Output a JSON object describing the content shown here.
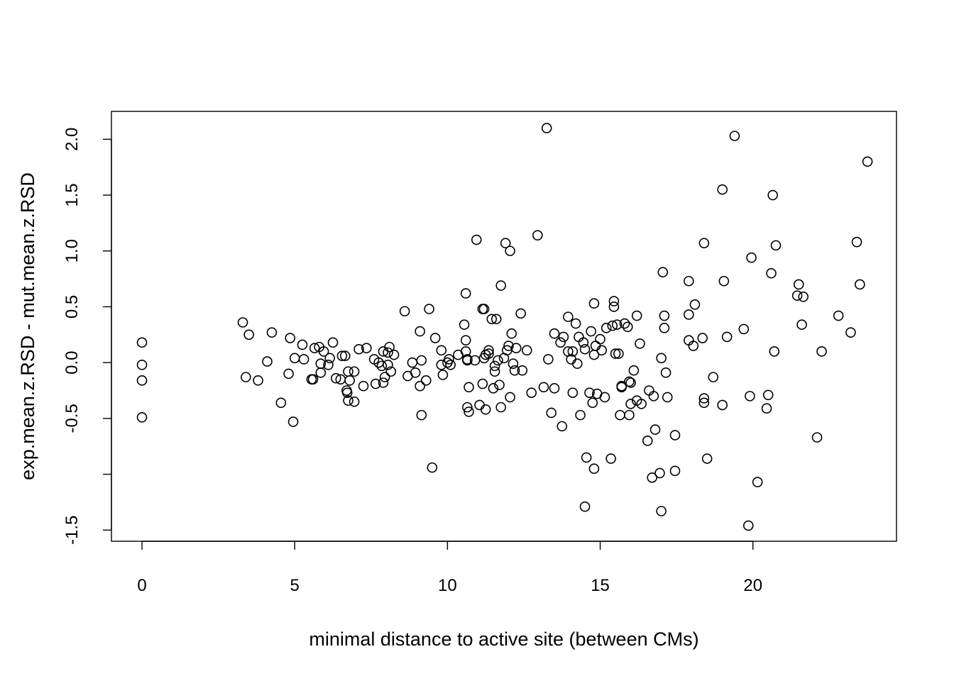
{
  "chart_data": {
    "type": "scatter",
    "xlabel": "minimal distance to active site (between CMs)",
    "ylabel": "exp.mean.z.RSD - mut.mean.z.RSD",
    "xlim": [
      -1.0,
      24.7
    ],
    "ylim": [
      -1.6,
      2.25
    ],
    "xticks": [
      0,
      5,
      10,
      15,
      20
    ],
    "yticks": [
      -1.5,
      -1.0,
      -0.5,
      0.0,
      0.5,
      1.0,
      1.5,
      2.0
    ],
    "ytick_labels": [
      "-1.5",
      "",
      "-0.5",
      "0.0",
      "0.5",
      "1.0",
      "1.5",
      "2.0"
    ],
    "grid": false,
    "points": [
      [
        0,
        0.18
      ],
      [
        0,
        -0.02
      ],
      [
        0,
        -0.16
      ],
      [
        0,
        -0.49
      ],
      [
        3.3,
        0.36
      ],
      [
        3.4,
        -0.13
      ],
      [
        3.5,
        0.25
      ],
      [
        3.8,
        -0.16
      ],
      [
        4.1,
        0.01
      ],
      [
        4.25,
        0.27
      ],
      [
        4.55,
        -0.36
      ],
      [
        4.8,
        -0.1
      ],
      [
        4.85,
        0.22
      ],
      [
        4.95,
        -0.53
      ],
      [
        5.0,
        0.04
      ],
      [
        5.3,
        0.03
      ],
      [
        5.25,
        0.16
      ],
      [
        5.55,
        -0.15
      ],
      [
        5.6,
        -0.15
      ],
      [
        5.65,
        0.13
      ],
      [
        5.8,
        0.14
      ],
      [
        5.85,
        -0.01
      ],
      [
        5.85,
        -0.09
      ],
      [
        5.95,
        0.1
      ],
      [
        6.1,
        -0.02
      ],
      [
        6.15,
        0.04
      ],
      [
        6.25,
        0.18
      ],
      [
        6.35,
        -0.14
      ],
      [
        6.5,
        -0.15
      ],
      [
        6.55,
        0.06
      ],
      [
        6.65,
        0.06
      ],
      [
        6.7,
        -0.25
      ],
      [
        6.72,
        -0.27
      ],
      [
        6.75,
        -0.34
      ],
      [
        6.75,
        -0.08
      ],
      [
        6.8,
        -0.16
      ],
      [
        6.95,
        -0.35
      ],
      [
        6.95,
        -0.08
      ],
      [
        7.1,
        0.12
      ],
      [
        7.25,
        -0.21
      ],
      [
        7.35,
        0.13
      ],
      [
        7.6,
        0.03
      ],
      [
        7.65,
        -0.19
      ],
      [
        7.75,
        0.0
      ],
      [
        7.85,
        -0.03
      ],
      [
        7.9,
        0.1
      ],
      [
        7.9,
        -0.18
      ],
      [
        7.95,
        -0.13
      ],
      [
        8.05,
        -0.02
      ],
      [
        8.05,
        0.09
      ],
      [
        8.1,
        0.14
      ],
      [
        8.15,
        -0.08
      ],
      [
        8.25,
        0.07
      ],
      [
        8.6,
        0.46
      ],
      [
        8.7,
        -0.12
      ],
      [
        8.85,
        0.0
      ],
      [
        8.95,
        -0.09
      ],
      [
        9.1,
        0.28
      ],
      [
        9.1,
        -0.21
      ],
      [
        9.15,
        0.02
      ],
      [
        9.15,
        -0.47
      ],
      [
        9.3,
        -0.16
      ],
      [
        9.4,
        0.48
      ],
      [
        9.5,
        -0.94
      ],
      [
        9.6,
        0.22
      ],
      [
        9.8,
        0.11
      ],
      [
        9.8,
        -0.02
      ],
      [
        9.85,
        -0.11
      ],
      [
        10.0,
        0.0
      ],
      [
        10.05,
        0.03
      ],
      [
        10.1,
        -0.02
      ],
      [
        10.35,
        0.07
      ],
      [
        10.55,
        0.34
      ],
      [
        10.6,
        0.62
      ],
      [
        10.6,
        0.2
      ],
      [
        10.6,
        0.1
      ],
      [
        10.65,
        0.03
      ],
      [
        10.65,
        0.02
      ],
      [
        10.65,
        -0.4
      ],
      [
        10.7,
        -0.44
      ],
      [
        10.7,
        -0.22
      ],
      [
        10.9,
        0.02
      ],
      [
        10.95,
        1.1
      ],
      [
        11.05,
        -0.38
      ],
      [
        11.15,
        0.48
      ],
      [
        11.15,
        -0.19
      ],
      [
        11.2,
        0.48
      ],
      [
        11.2,
        0.04
      ],
      [
        11.25,
        0.07
      ],
      [
        11.25,
        -0.42
      ],
      [
        11.35,
        0.11
      ],
      [
        11.35,
        0.08
      ],
      [
        11.45,
        0.39
      ],
      [
        11.5,
        -0.23
      ],
      [
        11.55,
        -0.08
      ],
      [
        11.55,
        -0.03
      ],
      [
        11.6,
        0.39
      ],
      [
        11.65,
        0.02
      ],
      [
        11.7,
        -0.2
      ],
      [
        11.75,
        0.69
      ],
      [
        11.75,
        -0.4
      ],
      [
        11.85,
        0.04
      ],
      [
        11.9,
        1.07
      ],
      [
        11.95,
        0.11
      ],
      [
        12.0,
        0.15
      ],
      [
        12.05,
        -0.31
      ],
      [
        12.05,
        1.0
      ],
      [
        12.1,
        0.26
      ],
      [
        12.15,
        -0.01
      ],
      [
        12.2,
        -0.07
      ],
      [
        12.25,
        0.13
      ],
      [
        12.4,
        0.44
      ],
      [
        12.45,
        -0.07
      ],
      [
        12.6,
        0.11
      ],
      [
        12.75,
        -0.27
      ],
      [
        12.95,
        1.14
      ],
      [
        13.15,
        -0.22
      ],
      [
        13.25,
        2.1
      ],
      [
        13.3,
        0.03
      ],
      [
        13.4,
        -0.45
      ],
      [
        13.5,
        0.26
      ],
      [
        13.5,
        -0.23
      ],
      [
        13.7,
        0.18
      ],
      [
        13.75,
        -0.57
      ],
      [
        13.8,
        0.23
      ],
      [
        13.95,
        0.41
      ],
      [
        13.95,
        0.1
      ],
      [
        14.05,
        0.03
      ],
      [
        14.1,
        0.1
      ],
      [
        14.1,
        -0.27
      ],
      [
        14.2,
        0.35
      ],
      [
        14.25,
        -0.01
      ],
      [
        14.3,
        0.23
      ],
      [
        14.35,
        -0.47
      ],
      [
        14.45,
        0.18
      ],
      [
        14.5,
        0.12
      ],
      [
        14.5,
        -1.29
      ],
      [
        14.55,
        -0.85
      ],
      [
        14.65,
        -0.27
      ],
      [
        14.7,
        0.28
      ],
      [
        14.75,
        -0.36
      ],
      [
        14.8,
        0.53
      ],
      [
        14.8,
        0.07
      ],
      [
        14.8,
        -0.95
      ],
      [
        14.85,
        0.15
      ],
      [
        14.9,
        -0.28
      ],
      [
        15.0,
        0.21
      ],
      [
        15.05,
        0.11
      ],
      [
        15.15,
        -0.31
      ],
      [
        15.2,
        0.31
      ],
      [
        15.35,
        -0.86
      ],
      [
        15.4,
        0.33
      ],
      [
        15.45,
        0.5
      ],
      [
        15.45,
        0.55
      ],
      [
        15.5,
        0.08
      ],
      [
        15.55,
        0.34
      ],
      [
        15.6,
        0.08
      ],
      [
        15.65,
        -0.47
      ],
      [
        15.7,
        -0.21
      ],
      [
        15.7,
        -0.22
      ],
      [
        15.8,
        0.35
      ],
      [
        15.9,
        0.32
      ],
      [
        15.95,
        -0.17
      ],
      [
        15.95,
        -0.47
      ],
      [
        16.0,
        -0.37
      ],
      [
        16.0,
        -0.18
      ],
      [
        16.1,
        -0.07
      ],
      [
        16.2,
        0.42
      ],
      [
        16.2,
        -0.34
      ],
      [
        16.3,
        0.17
      ],
      [
        16.35,
        -0.37
      ],
      [
        16.55,
        -0.7
      ],
      [
        16.6,
        -0.25
      ],
      [
        16.7,
        -1.03
      ],
      [
        16.75,
        -0.3
      ],
      [
        16.8,
        -0.6
      ],
      [
        16.95,
        -0.99
      ],
      [
        17.0,
        -1.33
      ],
      [
        17.0,
        0.04
      ],
      [
        17.05,
        0.81
      ],
      [
        17.1,
        0.42
      ],
      [
        17.1,
        0.31
      ],
      [
        17.15,
        -0.09
      ],
      [
        17.2,
        -0.31
      ],
      [
        17.45,
        -0.97
      ],
      [
        17.45,
        -0.65
      ],
      [
        17.9,
        0.43
      ],
      [
        17.9,
        0.2
      ],
      [
        17.9,
        0.73
      ],
      [
        18.05,
        0.15
      ],
      [
        18.1,
        0.52
      ],
      [
        18.35,
        0.22
      ],
      [
        18.4,
        1.07
      ],
      [
        18.4,
        -0.32
      ],
      [
        18.4,
        -0.36
      ],
      [
        18.5,
        -0.86
      ],
      [
        18.7,
        -0.13
      ],
      [
        19.0,
        1.55
      ],
      [
        19.0,
        -0.38
      ],
      [
        19.05,
        0.73
      ],
      [
        19.15,
        0.23
      ],
      [
        19.4,
        2.03
      ],
      [
        19.7,
        0.3
      ],
      [
        19.85,
        -1.46
      ],
      [
        19.9,
        -0.3
      ],
      [
        19.95,
        0.94
      ],
      [
        20.15,
        -1.07
      ],
      [
        20.45,
        -0.41
      ],
      [
        20.5,
        -0.29
      ],
      [
        20.6,
        0.8
      ],
      [
        20.65,
        1.5
      ],
      [
        20.7,
        0.1
      ],
      [
        20.75,
        1.05
      ],
      [
        21.45,
        0.6
      ],
      [
        21.5,
        0.7
      ],
      [
        21.6,
        0.34
      ],
      [
        21.65,
        0.59
      ],
      [
        22.1,
        -0.67
      ],
      [
        22.25,
        0.1
      ],
      [
        22.8,
        0.42
      ],
      [
        23.2,
        0.27
      ],
      [
        23.4,
        1.08
      ],
      [
        23.5,
        0.7
      ],
      [
        23.75,
        1.8
      ]
    ]
  }
}
